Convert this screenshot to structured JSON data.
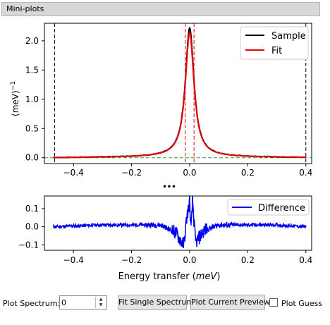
{
  "panel": {
    "title": "Mini-plots"
  },
  "top_plot": {
    "ylabel": "(meV)$^{-1}$",
    "yticks": [
      "0.0",
      "0.5",
      "1.0",
      "1.5",
      "2.0"
    ],
    "xticks": [
      "−0.4",
      "−0.2",
      "0.0",
      "0.2",
      "0.4"
    ],
    "legend": [
      "Sample",
      "Fit"
    ],
    "colors": {
      "sample": "#000000",
      "fit": "#e8000b",
      "baseline": "#2ca02c",
      "range": "#000000"
    }
  },
  "splitter_handle": "•••",
  "bottom_plot": {
    "xlabel": "Energy transfer",
    "xlabel_unit": "meV",
    "yticks": [
      "0.1",
      "0.0",
      "−0.1"
    ],
    "xticks": [
      "−0.4",
      "−0.2",
      "0.0",
      "0.2",
      "0.4"
    ],
    "legend": [
      "Difference"
    ],
    "colors": {
      "difference": "#0000ee"
    }
  },
  "controls": {
    "plot_spectrum_label": "Plot Spectrum:",
    "plot_spectrum_value": "0",
    "fit_single_button": "Fit Single Spectrum",
    "plot_preview_button": "Plot Current Preview",
    "plot_guess_label": "Plot Guess",
    "plot_guess_checked": false
  },
  "chart_data": [
    {
      "type": "line",
      "xlim": [
        -0.5,
        0.42
      ],
      "ylim": [
        -0.1,
        2.3
      ],
      "series": [
        {
          "name": "Sample",
          "x": [
            -0.47,
            -0.3,
            -0.2,
            -0.1,
            -0.05,
            -0.02,
            0.0,
            0.02,
            0.05,
            0.1,
            0.2,
            0.3,
            0.4
          ],
          "y": [
            0.0,
            0.03,
            0.07,
            0.2,
            0.55,
            1.4,
            2.2,
            1.4,
            0.55,
            0.2,
            0.07,
            0.03,
            0.0
          ]
        },
        {
          "name": "Fit",
          "x": [
            -0.47,
            -0.3,
            -0.2,
            -0.1,
            -0.05,
            -0.02,
            0.0,
            0.02,
            0.05,
            0.1,
            0.2,
            0.3,
            0.4
          ],
          "y": [
            0.0,
            0.02,
            0.05,
            0.17,
            0.5,
            1.35,
            2.12,
            1.35,
            0.5,
            0.17,
            0.05,
            0.02,
            0.0
          ]
        }
      ],
      "vlines": [
        -0.465,
        -0.015,
        0.015,
        0.4
      ],
      "hline": 0.0
    },
    {
      "type": "line",
      "xlim": [
        -0.5,
        0.42
      ],
      "ylim": [
        -0.13,
        0.17
      ],
      "series": [
        {
          "name": "Difference",
          "x": [
            -0.47,
            -0.3,
            -0.1,
            -0.05,
            -0.02,
            -0.01,
            0.0,
            0.005,
            0.01,
            0.02,
            0.05,
            0.1,
            0.3,
            0.4
          ],
          "y": [
            0.0,
            0.01,
            0.01,
            -0.03,
            -0.1,
            0.05,
            0.14,
            -0.02,
            0.15,
            -0.09,
            -0.02,
            0.01,
            0.01,
            0.0
          ]
        }
      ]
    }
  ]
}
